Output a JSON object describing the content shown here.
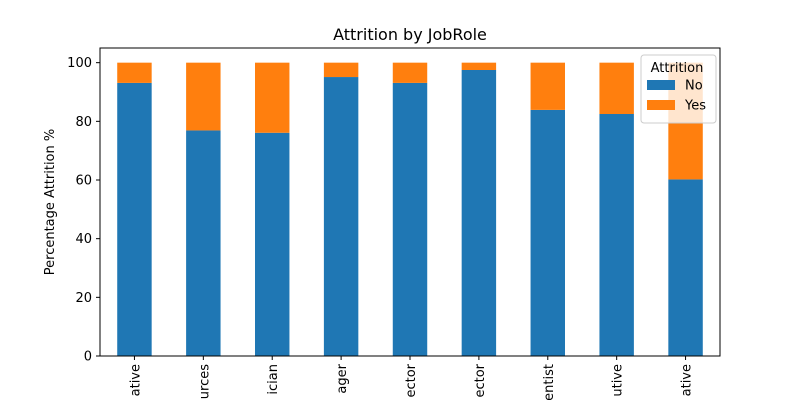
{
  "chart_data": {
    "type": "bar",
    "stacked": true,
    "title": "Attrition by JobRole",
    "xlabel": "",
    "ylabel": "Percentage Attrition %",
    "ylim": [
      0,
      105
    ],
    "yticks": [
      0,
      20,
      40,
      60,
      80,
      100
    ],
    "categories": [
      "ative",
      "urces",
      "ician",
      "ager",
      "ector",
      "ector",
      "entist",
      "utive",
      "ative"
    ],
    "series": [
      {
        "name": "No",
        "color": "#1f77b4",
        "values": [
          93.1,
          76.9,
          76.1,
          95.1,
          93.1,
          97.5,
          83.9,
          82.5,
          60.2
        ]
      },
      {
        "name": "Yes",
        "color": "#ff7f0e",
        "values": [
          6.9,
          23.1,
          23.9,
          4.9,
          6.9,
          2.5,
          16.1,
          17.5,
          39.8
        ]
      }
    ],
    "legend": {
      "title": "Attrition",
      "placement": "top-right"
    },
    "grid": false
  }
}
